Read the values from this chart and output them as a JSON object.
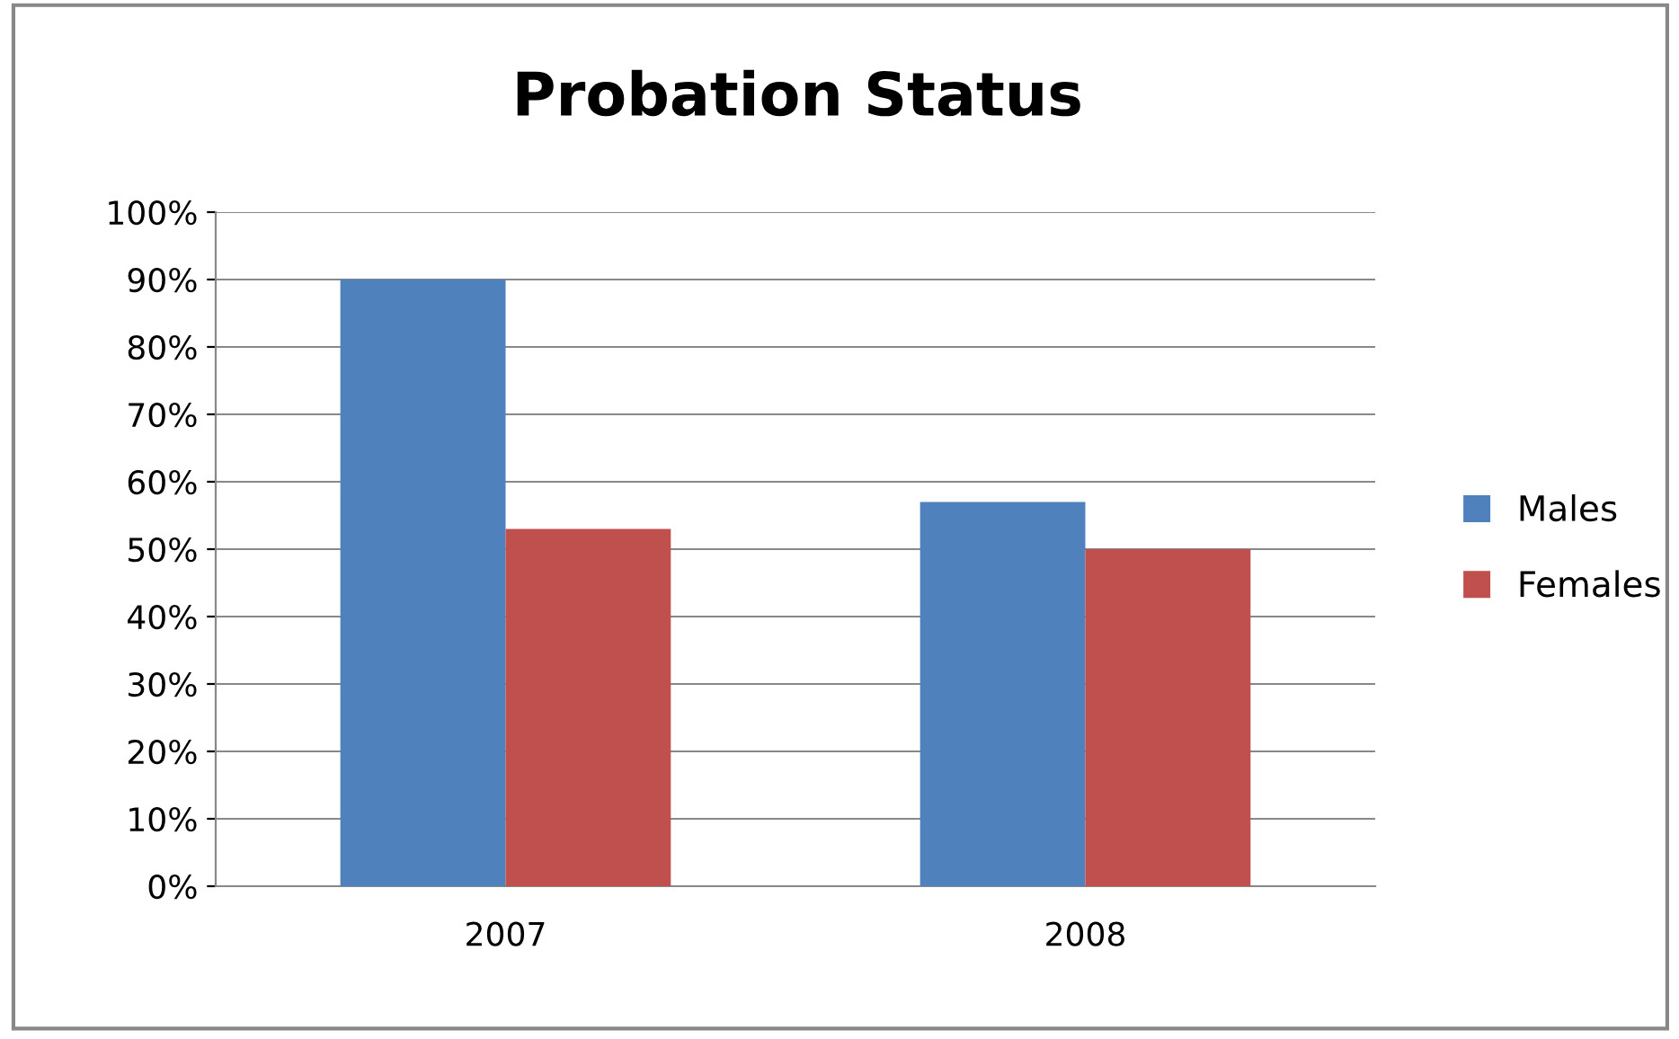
{
  "chart_data": {
    "type": "bar",
    "title": "Probation Status",
    "categories": [
      "2007",
      "2008"
    ],
    "series": [
      {
        "name": "Males",
        "color": "#4f81bd",
        "values": [
          90,
          57
        ]
      },
      {
        "name": "Females",
        "color": "#c0504d",
        "values": [
          53,
          50
        ]
      }
    ],
    "ylim": [
      0,
      100
    ],
    "yticks": [
      {
        "value": 0,
        "label": "0%"
      },
      {
        "value": 10,
        "label": "10%"
      },
      {
        "value": 20,
        "label": "20%"
      },
      {
        "value": 30,
        "label": "30%"
      },
      {
        "value": 40,
        "label": "40%"
      },
      {
        "value": 50,
        "label": "50%"
      },
      {
        "value": 60,
        "label": "60%"
      },
      {
        "value": 70,
        "label": "70%"
      },
      {
        "value": 80,
        "label": "80%"
      },
      {
        "value": 90,
        "label": "90%"
      },
      {
        "value": 100,
        "label": "100%"
      }
    ],
    "grid": "y",
    "legend": "right"
  }
}
